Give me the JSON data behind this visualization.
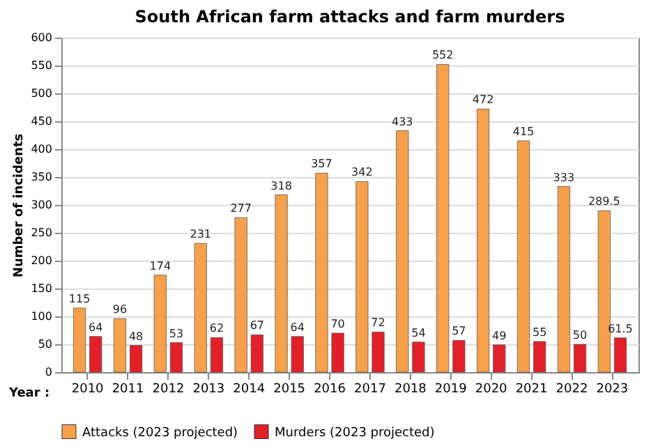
{
  "chart_data": {
    "type": "bar",
    "title": "South African farm attacks and farm murders",
    "xlabel": "Year :",
    "ylabel": "Number of incidents",
    "categories": [
      "2010",
      "2011",
      "2012",
      "2013",
      "2014",
      "2015",
      "2016",
      "2017",
      "2018",
      "2019",
      "2020",
      "2021",
      "2022",
      "2023"
    ],
    "series": [
      {
        "name": "Attacks (2023 projected)",
        "color": "#f7a04b",
        "values": [
          115,
          96,
          174,
          231,
          277,
          318,
          357,
          342,
          433,
          552,
          472,
          415,
          333,
          289.5
        ]
      },
      {
        "name": "Murders (2023 projected)",
        "color": "#e3202a",
        "values": [
          64,
          48,
          53,
          62,
          67,
          64,
          70,
          72,
          54,
          57,
          49,
          55,
          50,
          61.5
        ]
      }
    ],
    "ylim": [
      0,
      600
    ],
    "yticks": [
      0,
      50,
      100,
      150,
      200,
      250,
      300,
      350,
      400,
      450,
      500,
      550,
      600
    ],
    "grid": "y",
    "legend": "bottom",
    "data_labels": true
  }
}
